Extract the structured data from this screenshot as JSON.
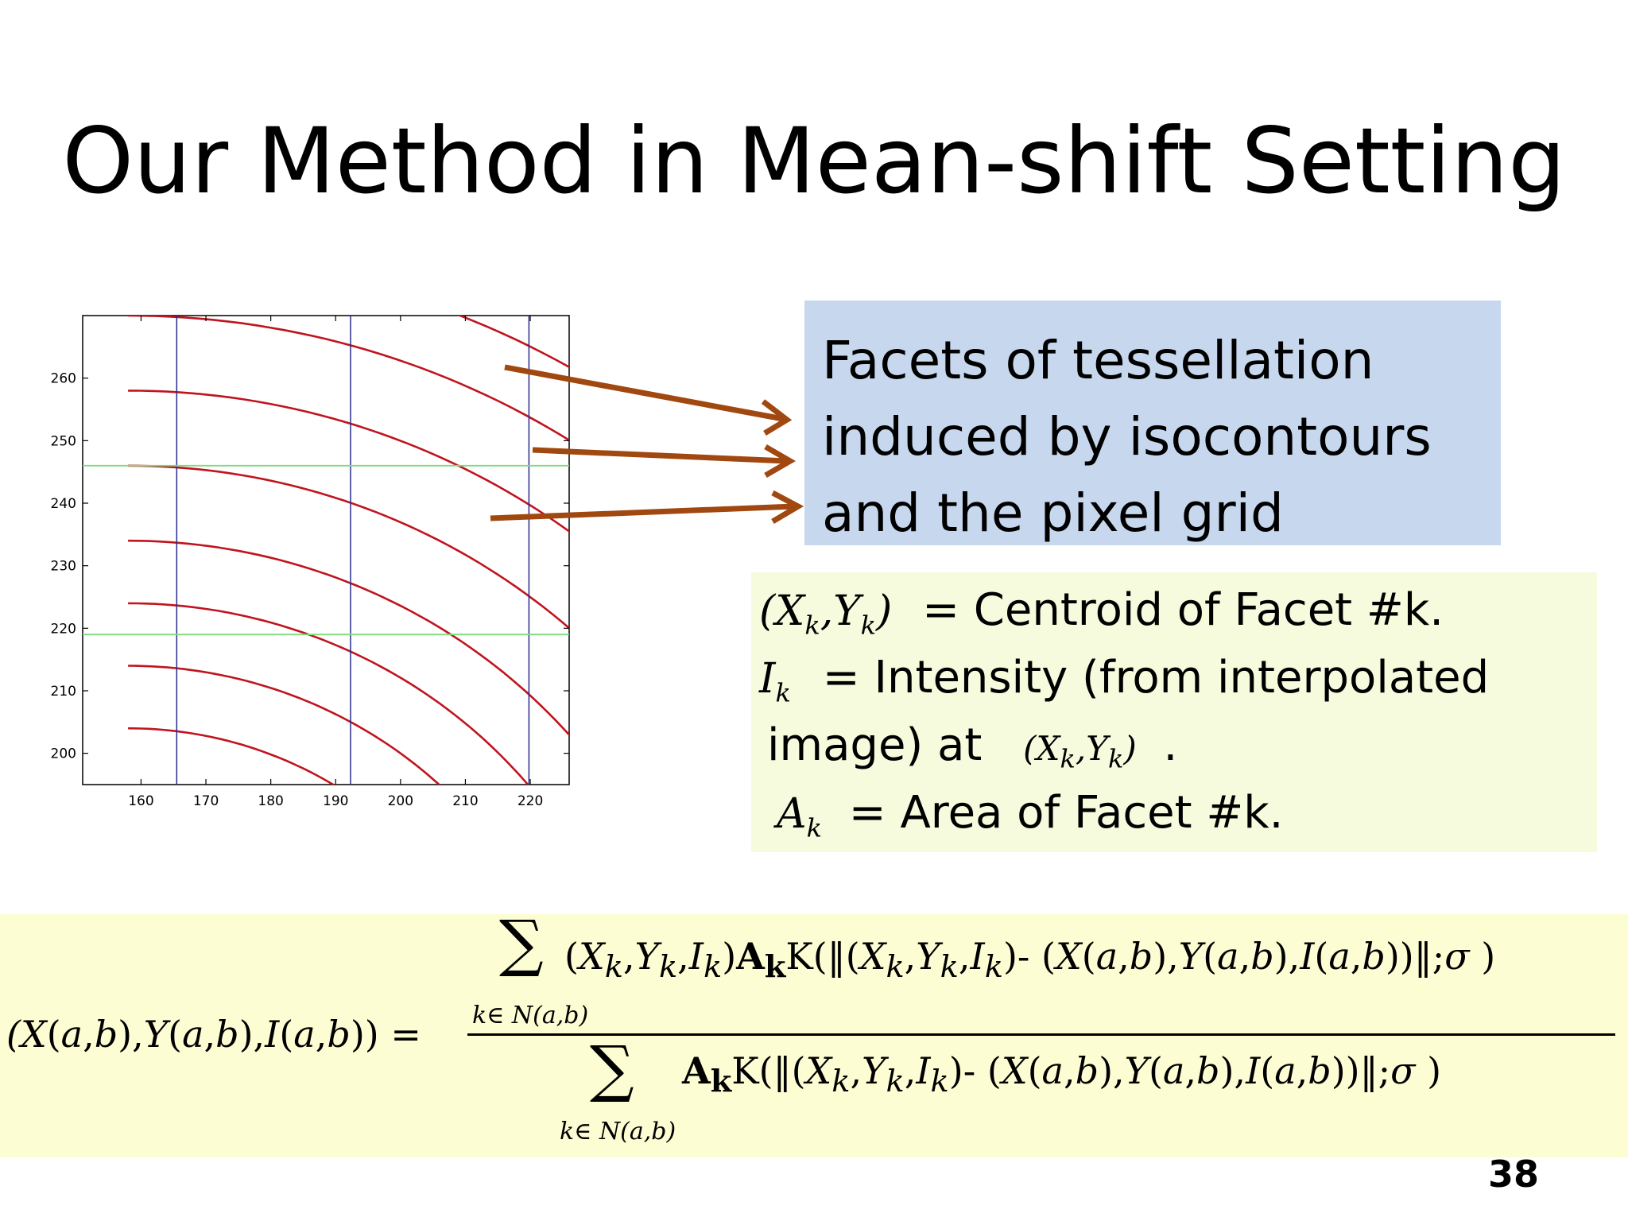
{
  "slide": {
    "title": "Our Method in Mean-shift Setting",
    "page_number": "38"
  },
  "callout": {
    "lines": [
      "Facets of tessellation",
      "induced by isocontours",
      "and the pixel grid"
    ]
  },
  "definitions": {
    "centroid_lhs": "(X",
    "centroid_text": "=  Centroid of Facet #k.",
    "intensity_text": "=  Intensity (from interpolated",
    "intensity_text2": "image) at",
    "area_text": "= Area of Facet #k."
  },
  "equation": {
    "sum_index": "k∈ N(a,b)",
    "lhs": "(X(a,b),Y(a,b),I(a,b)) ="
  },
  "plot": {
    "x_ticks": [
      160,
      170,
      180,
      190,
      200,
      210,
      220
    ],
    "y_ticks": [
      200,
      210,
      220,
      230,
      240,
      250,
      260
    ],
    "x_range": [
      151,
      226
    ],
    "y_range": [
      195,
      270
    ],
    "vertical_grid_x": [
      165.5,
      192.3,
      219.8
    ],
    "horizontal_grid_y": [
      246,
      219
    ],
    "contour_color": "#c0141e",
    "grid_v_color": "#2b2b8a",
    "grid_h_color": "#7fdc7f"
  },
  "colors": {
    "arrow": "#a0480f",
    "callout_bg": "#c7d8ee",
    "defs_bg": "#f7fbdd",
    "eq_bg": "#fdfdd3"
  }
}
